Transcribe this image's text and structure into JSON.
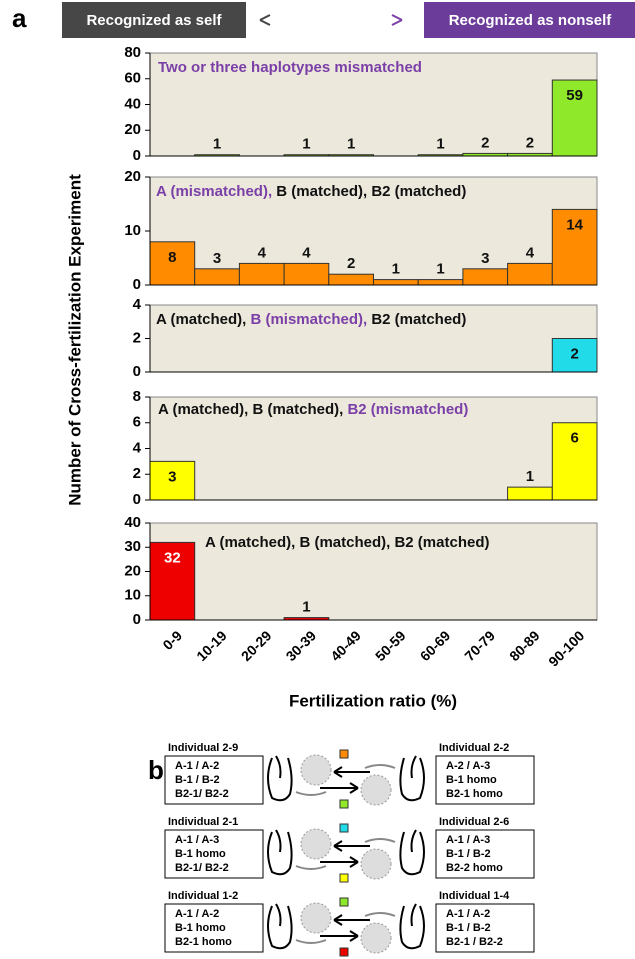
{
  "header": {
    "panel_label": "a",
    "self_label": "Recognized as self",
    "nonself_label": "Recognized as nonself"
  },
  "figure": {
    "y_label": "Number of Cross-fertilization Experiment",
    "x_label": "Fertilization ratio (%)"
  },
  "chart_data": [
    {
      "type": "bar",
      "title_parts": [
        {
          "text": "Two or three haplotypes mismatched",
          "color": "#7b3fa8"
        }
      ],
      "values": [
        null,
        1,
        null,
        1,
        1,
        null,
        1,
        2,
        2,
        59
      ],
      "color": "#8fe82a",
      "ylim": [
        0,
        80
      ],
      "yticks": [
        0,
        20,
        40,
        60,
        80
      ]
    },
    {
      "type": "bar",
      "title_parts": [
        {
          "text": "A (mismatched),",
          "color": "#7b3fa8"
        },
        {
          "text": " B (matched), B2 (matched)",
          "color": "#111111"
        }
      ],
      "values": [
        8,
        3,
        4,
        4,
        2,
        1,
        1,
        3,
        4,
        14
      ],
      "color": "#ff8c00",
      "ylim": [
        0,
        20
      ],
      "yticks": [
        0,
        10,
        20
      ]
    },
    {
      "type": "bar",
      "title_parts": [
        {
          "text": "A (matched),",
          "color": "#111111"
        },
        {
          "text": " B (mismatched),",
          "color": "#7b3fa8"
        },
        {
          "text": " B2 (matched)",
          "color": "#111111"
        }
      ],
      "values": [
        null,
        null,
        null,
        null,
        null,
        null,
        null,
        null,
        null,
        2
      ],
      "color": "#22dbe8",
      "ylim": [
        0,
        4
      ],
      "yticks": [
        0,
        2,
        4
      ]
    },
    {
      "type": "bar",
      "title_parts": [
        {
          "text": "A (matched), B (matched),",
          "color": "#111111"
        },
        {
          "text": " B2 (mismatched)",
          "color": "#7b3fa8"
        }
      ],
      "values": [
        3,
        null,
        null,
        null,
        null,
        null,
        null,
        null,
        1,
        6
      ],
      "color": "#ffff00",
      "ylim": [
        0,
        8
      ],
      "yticks": [
        0,
        2,
        4,
        6,
        8
      ]
    },
    {
      "type": "bar",
      "title_parts": [
        {
          "text": "A (matched), B (matched), B2 (matched)",
          "color": "#111111"
        }
      ],
      "values": [
        32,
        null,
        null,
        1,
        null,
        null,
        null,
        null,
        null,
        null
      ],
      "color": "#ee0000",
      "ylim": [
        0,
        40
      ],
      "yticks": [
        0,
        10,
        20,
        30,
        40
      ],
      "categories": [
        "0-9",
        "10-19",
        "20-29",
        "30-39",
        "40-49",
        "50-59",
        "60-69",
        "70-79",
        "80-89",
        "90-100"
      ]
    }
  ],
  "panel_b": {
    "label": "b",
    "rows": [
      {
        "left": {
          "title": "Individual 2-9",
          "lines": [
            "A-1 / A-2",
            "B-1 / B-2",
            "B2-1/ B2-2"
          ]
        },
        "right": {
          "title": "Individual 2-2",
          "lines": [
            "A-2 / A-3",
            "B-1 homo",
            "B2-1 homo"
          ]
        },
        "top_color": "#ff8c00",
        "bottom_color": "#8fe82a"
      },
      {
        "left": {
          "title": "Individual 2-1",
          "lines": [
            "A-1 / A-3",
            "B-1 homo",
            "B2-1/ B2-2"
          ]
        },
        "right": {
          "title": "Individual 2-6",
          "lines": [
            "A-1 / A-3",
            "B-1 / B-2",
            "B2-2 homo"
          ]
        },
        "top_color": "#22dbe8",
        "bottom_color": "#ffff00"
      },
      {
        "left": {
          "title": "Individual 1-2",
          "lines": [
            "A-1 / A-2",
            "B-1 homo",
            "B2-1 homo"
          ]
        },
        "right": {
          "title": "Individual 1-4",
          "lines": [
            "A-1 / A-2",
            "B-1 / B-2",
            "B2-1 / B2-2"
          ]
        },
        "top_color": "#8fe82a",
        "bottom_color": "#ee0000"
      }
    ]
  }
}
